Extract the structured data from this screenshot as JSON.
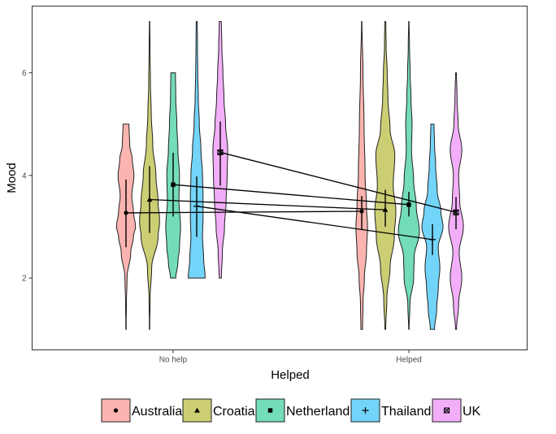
{
  "chart_data": {
    "type": "violin",
    "xlabel": "Helped",
    "ylabel": "Mood",
    "categories": [
      "No help",
      "Helped"
    ],
    "ylim": [
      0.6,
      7.3
    ],
    "yticks": [
      2,
      4,
      6
    ],
    "grid": false,
    "legend_position": "bottom",
    "series": [
      {
        "name": "Australia",
        "color": "#F8766D",
        "marker": "circle",
        "means": [
          3.27,
          3.3
        ],
        "ci": [
          [
            2.6,
            3.92
          ],
          [
            2.95,
            3.6
          ]
        ],
        "violins": [
          {
            "min": 1,
            "max": 5,
            "profile": [
              [
                1,
                0.01
              ],
              [
                1.5,
                0.04
              ],
              [
                2,
                0.1
              ],
              [
                2.5,
                0.45
              ],
              [
                2.8,
                0.7
              ],
              [
                3.0,
                0.9
              ],
              [
                3.3,
                0.7
              ],
              [
                3.6,
                0.55
              ],
              [
                4.0,
                0.75
              ],
              [
                4.3,
                0.6
              ],
              [
                4.6,
                0.35
              ],
              [
                5,
                0.28
              ]
            ]
          },
          {
            "min": 1,
            "max": 7,
            "profile": [
              [
                1,
                0.08
              ],
              [
                1.5,
                0.12
              ],
              [
                2,
                0.25
              ],
              [
                2.5,
                0.45
              ],
              [
                3,
                0.55
              ],
              [
                3.4,
                0.45
              ],
              [
                4,
                0.32
              ],
              [
                5,
                0.22
              ],
              [
                6,
                0.12
              ],
              [
                7,
                0.02
              ]
            ]
          }
        ]
      },
      {
        "name": "Croatia",
        "color": "#A3A500",
        "marker": "triangle",
        "means": [
          3.53,
          3.33
        ],
        "ci": [
          [
            2.88,
            4.18
          ],
          [
            3.0,
            3.72
          ]
        ],
        "violins": [
          {
            "min": 1,
            "max": 7,
            "profile": [
              [
                1,
                0.01
              ],
              [
                1.6,
                0.05
              ],
              [
                2.2,
                0.2
              ],
              [
                2.8,
                0.8
              ],
              [
                3.1,
                0.95
              ],
              [
                3.5,
                0.8
              ],
              [
                4.0,
                0.6
              ],
              [
                4.6,
                0.3
              ],
              [
                5.2,
                0.16
              ],
              [
                5.8,
                0.08
              ],
              [
                6.5,
                0.04
              ],
              [
                7,
                0.02
              ]
            ]
          },
          {
            "min": 1,
            "max": 7,
            "profile": [
              [
                1,
                0.04
              ],
              [
                1.6,
                0.15
              ],
              [
                2.2,
                0.45
              ],
              [
                2.8,
                0.85
              ],
              [
                3.3,
                1.0
              ],
              [
                3.8,
                0.75
              ],
              [
                4.4,
                0.9
              ],
              [
                4.9,
                0.45
              ],
              [
                5.5,
                0.25
              ],
              [
                6,
                0.18
              ],
              [
                6.5,
                0.08
              ],
              [
                7,
                0.05
              ]
            ]
          }
        ]
      },
      {
        "name": "Netherland",
        "color": "#00BF7D",
        "marker": "square",
        "means": [
          3.82,
          3.43
        ],
        "ci": [
          [
            3.2,
            4.44
          ],
          [
            3.2,
            3.68
          ]
        ],
        "violins": [
          {
            "min": 2,
            "max": 6,
            "profile": [
              [
                2,
                0.25
              ],
              [
                2.3,
                0.45
              ],
              [
                2.6,
                0.6
              ],
              [
                3,
                0.7
              ],
              [
                3.5,
                0.55
              ],
              [
                4,
                0.6
              ],
              [
                4.5,
                0.45
              ],
              [
                5,
                0.35
              ],
              [
                5.5,
                0.25
              ],
              [
                6,
                0.22
              ]
            ]
          },
          {
            "min": 1,
            "max": 7,
            "profile": [
              [
                1,
                0.02
              ],
              [
                1.5,
                0.1
              ],
              [
                2,
                0.45
              ],
              [
                2.4,
                0.5
              ],
              [
                2.9,
                1.0
              ],
              [
                3.4,
                0.7
              ],
              [
                3.9,
                0.45
              ],
              [
                4.5,
                0.25
              ],
              [
                5,
                0.3
              ],
              [
                5.5,
                0.2
              ],
              [
                6,
                0.12
              ],
              [
                6.5,
                0.06
              ],
              [
                7,
                0.02
              ]
            ]
          }
        ]
      },
      {
        "name": "Thailand",
        "color": "#00B0F6",
        "marker": "plus",
        "means": [
          3.4,
          2.75
        ],
        "ci": [
          [
            2.8,
            3.98
          ],
          [
            2.45,
            3.05
          ]
        ],
        "violins": [
          {
            "min": 2,
            "max": 7,
            "profile": [
              [
                2,
                0.8
              ],
              [
                2.4,
                0.65
              ],
              [
                2.8,
                0.55
              ],
              [
                3.2,
                0.6
              ],
              [
                3.6,
                0.6
              ],
              [
                4.0,
                0.55
              ],
              [
                4.5,
                0.4
              ],
              [
                5,
                0.25
              ],
              [
                5.5,
                0.15
              ],
              [
                6,
                0.1
              ],
              [
                6.5,
                0.07
              ],
              [
                7,
                0.05
              ]
            ]
          },
          {
            "min": 1,
            "max": 5,
            "profile": [
              [
                1,
                0.2
              ],
              [
                1.4,
                0.4
              ],
              [
                1.8,
                0.55
              ],
              [
                2.2,
                0.7
              ],
              [
                2.6,
                0.55
              ],
              [
                3.0,
                1.0
              ],
              [
                3.3,
                0.8
              ],
              [
                3.7,
                0.45
              ],
              [
                4.2,
                0.3
              ],
              [
                4.6,
                0.2
              ],
              [
                5,
                0.15
              ]
            ]
          }
        ]
      },
      {
        "name": "UK",
        "color": "#E76BF3",
        "marker": "square-cross",
        "means": [
          4.45,
          3.28
        ],
        "ci": [
          [
            3.8,
            5.05
          ],
          [
            2.95,
            3.58
          ]
        ],
        "violins": [
          {
            "min": 2,
            "max": 7,
            "profile": [
              [
                2,
                0.1
              ],
              [
                2.5,
                0.2
              ],
              [
                3,
                0.4
              ],
              [
                3.5,
                0.55
              ],
              [
                4,
                0.65
              ],
              [
                4.5,
                0.7
              ],
              [
                5,
                0.5
              ],
              [
                5.5,
                0.35
              ],
              [
                6,
                0.25
              ],
              [
                6.5,
                0.15
              ],
              [
                7,
                0.1
              ]
            ]
          },
          {
            "min": 1,
            "max": 6,
            "profile": [
              [
                1,
                0.05
              ],
              [
                1.5,
                0.25
              ],
              [
                2,
                0.55
              ],
              [
                2.5,
                0.3
              ],
              [
                3,
                0.7
              ],
              [
                3.5,
                0.35
              ],
              [
                4,
                0.25
              ],
              [
                4.5,
                0.55
              ],
              [
                5,
                0.2
              ],
              [
                5.5,
                0.1
              ],
              [
                6,
                0.04
              ]
            ]
          }
        ]
      }
    ]
  }
}
